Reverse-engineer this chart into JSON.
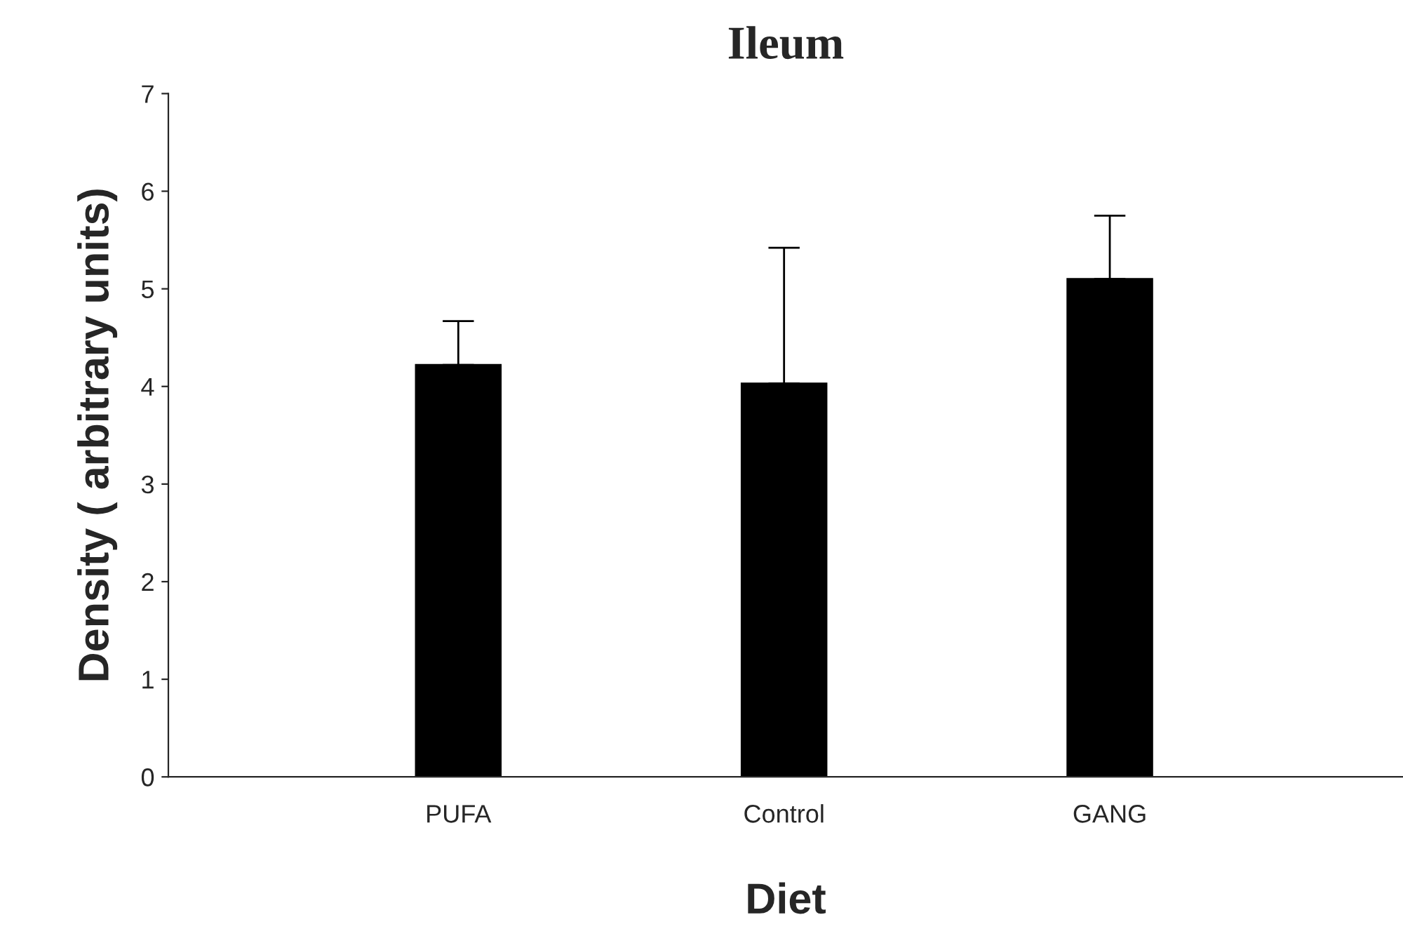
{
  "chart_data": {
    "type": "bar",
    "title": "Ileum",
    "xlabel": "Diet",
    "ylabel": "Density ( arbitrary units)",
    "categories": [
      "PUFA",
      "Control",
      "GANG"
    ],
    "values": [
      4.22,
      4.03,
      5.1
    ],
    "errors": [
      [
        4.22,
        4.67
      ],
      [
        4.03,
        5.42
      ],
      [
        5.1,
        5.75
      ]
    ],
    "color": "#000000",
    "ylim": [
      0,
      7
    ],
    "yticks": [
      0,
      1,
      2,
      3,
      4,
      5,
      6,
      7
    ],
    "grid": false,
    "legend": false
  }
}
